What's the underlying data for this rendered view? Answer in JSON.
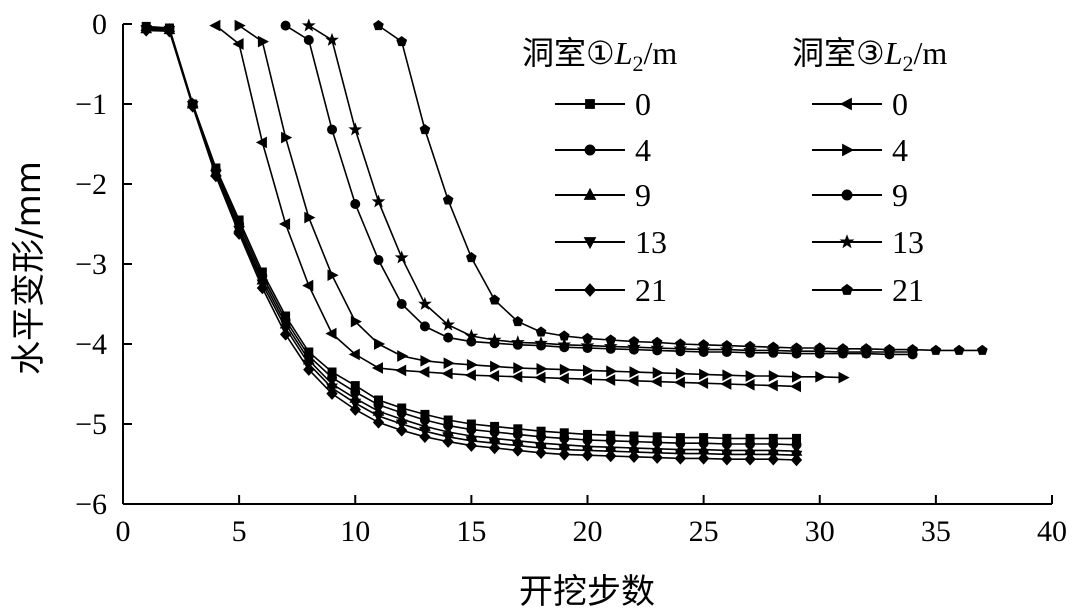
{
  "chart_data": {
    "type": "line",
    "title": "",
    "xlabel": "开挖步数",
    "ylabel": "水平变形/mm",
    "xlim": [
      0,
      40
    ],
    "ylim": [
      -6,
      0
    ],
    "xticks": [
      0,
      5,
      10,
      15,
      20,
      25,
      30,
      35,
      40
    ],
    "yticks": [
      0,
      -1,
      -2,
      -3,
      -4,
      -5,
      -6
    ],
    "xtick_labels": [
      "0",
      "5",
      "10",
      "15",
      "20",
      "25",
      "30",
      "35",
      "40"
    ],
    "ytick_labels": [
      "0",
      "−1",
      "−2",
      "−3",
      "−4",
      "−5",
      "−6"
    ],
    "legend": {
      "position": "top-right",
      "group1": {
        "title_prefix": "洞室①",
        "title_var": "L",
        "title_sub": "2",
        "title_suffix": "/m"
      },
      "group2": {
        "title_prefix": "洞室③",
        "title_var": "L",
        "title_sub": "2",
        "title_suffix": "/m"
      }
    },
    "series": [
      {
        "name": "0",
        "group": 1,
        "marker": "square",
        "x": [
          1,
          2,
          3,
          4,
          5,
          6,
          7,
          8,
          9,
          10,
          11,
          12,
          13,
          14,
          15,
          16,
          17,
          18,
          19,
          20,
          21,
          22,
          23,
          24,
          25,
          26,
          27,
          28,
          29
        ],
        "y": [
          -0.03,
          -0.05,
          -1.0,
          -1.8,
          -2.45,
          -3.1,
          -3.65,
          -4.1,
          -4.35,
          -4.52,
          -4.7,
          -4.8,
          -4.88,
          -4.95,
          -5.0,
          -5.03,
          -5.06,
          -5.09,
          -5.11,
          -5.13,
          -5.14,
          -5.15,
          -5.16,
          -5.17,
          -5.17,
          -5.18,
          -5.18,
          -5.18,
          -5.18
        ]
      },
      {
        "name": "4",
        "group": 1,
        "marker": "circle",
        "x": [
          1,
          2,
          3,
          4,
          5,
          6,
          7,
          8,
          9,
          10,
          11,
          12,
          13,
          14,
          15,
          16,
          17,
          18,
          19,
          20,
          21,
          22,
          23,
          24,
          25,
          26,
          27,
          28,
          29
        ],
        "y": [
          -0.05,
          -0.06,
          -1.0,
          -1.82,
          -2.5,
          -3.15,
          -3.7,
          -4.15,
          -4.42,
          -4.6,
          -4.76,
          -4.86,
          -4.95,
          -5.02,
          -5.07,
          -5.1,
          -5.13,
          -5.16,
          -5.18,
          -5.2,
          -5.21,
          -5.22,
          -5.23,
          -5.24,
          -5.24,
          -5.25,
          -5.25,
          -5.25,
          -5.26
        ]
      },
      {
        "name": "9",
        "group": 1,
        "marker": "triangle-up",
        "x": [
          1,
          2,
          3,
          4,
          5,
          6,
          7,
          8,
          9,
          10,
          11,
          12,
          13,
          14,
          15,
          16,
          17,
          18,
          19,
          20,
          21,
          22,
          23,
          24,
          25,
          26,
          27,
          28,
          29
        ],
        "y": [
          -0.06,
          -0.07,
          -1.0,
          -1.85,
          -2.55,
          -3.2,
          -3.75,
          -4.2,
          -4.5,
          -4.68,
          -4.84,
          -4.94,
          -5.03,
          -5.1,
          -5.15,
          -5.18,
          -5.21,
          -5.24,
          -5.26,
          -5.28,
          -5.29,
          -5.3,
          -5.31,
          -5.32,
          -5.32,
          -5.33,
          -5.33,
          -5.33,
          -5.34
        ]
      },
      {
        "name": "13",
        "group": 1,
        "marker": "triangle-down",
        "x": [
          1,
          2,
          3,
          4,
          5,
          6,
          7,
          8,
          9,
          10,
          11,
          12,
          13,
          14,
          15,
          16,
          17,
          18,
          19,
          20,
          21,
          22,
          23,
          24,
          25,
          26,
          27,
          28,
          29
        ],
        "y": [
          -0.07,
          -0.08,
          -1.02,
          -1.88,
          -2.58,
          -3.25,
          -3.8,
          -4.25,
          -4.55,
          -4.74,
          -4.9,
          -5.0,
          -5.09,
          -5.16,
          -5.21,
          -5.24,
          -5.27,
          -5.3,
          -5.32,
          -5.33,
          -5.34,
          -5.35,
          -5.36,
          -5.37,
          -5.37,
          -5.38,
          -5.38,
          -5.38,
          -5.39
        ]
      },
      {
        "name": "21",
        "group": 1,
        "marker": "diamond",
        "x": [
          1,
          2,
          3,
          4,
          5,
          6,
          7,
          8,
          9,
          10,
          11,
          12,
          13,
          14,
          15,
          16,
          17,
          18,
          19,
          20,
          21,
          22,
          23,
          24,
          25,
          26,
          27,
          28,
          29
        ],
        "y": [
          -0.08,
          -0.09,
          -1.03,
          -1.9,
          -2.62,
          -3.3,
          -3.88,
          -4.32,
          -4.62,
          -4.82,
          -4.98,
          -5.08,
          -5.16,
          -5.22,
          -5.27,
          -5.3,
          -5.33,
          -5.36,
          -5.38,
          -5.39,
          -5.4,
          -5.41,
          -5.42,
          -5.43,
          -5.43,
          -5.44,
          -5.44,
          -5.44,
          -5.45
        ]
      },
      {
        "name": "0",
        "group": 2,
        "marker": "triangle-left",
        "x": [
          4,
          5,
          6,
          7,
          8,
          9,
          10,
          11,
          12,
          13,
          14,
          15,
          16,
          17,
          18,
          19,
          20,
          21,
          22,
          23,
          24,
          25,
          26,
          27,
          28,
          29
        ],
        "y": [
          -0.02,
          -0.25,
          -1.48,
          -2.5,
          -3.27,
          -3.87,
          -4.13,
          -4.3,
          -4.33,
          -4.35,
          -4.37,
          -4.39,
          -4.4,
          -4.41,
          -4.42,
          -4.43,
          -4.44,
          -4.45,
          -4.46,
          -4.47,
          -4.48,
          -4.49,
          -4.5,
          -4.51,
          -4.52,
          -4.53
        ]
      },
      {
        "name": "4",
        "group": 2,
        "marker": "triangle-right",
        "x": [
          5,
          6,
          7,
          8,
          9,
          10,
          11,
          12,
          13,
          14,
          15,
          16,
          17,
          18,
          19,
          20,
          21,
          22,
          23,
          24,
          25,
          26,
          27,
          28,
          29,
          30,
          31
        ],
        "y": [
          -0.02,
          -0.22,
          -1.42,
          -2.42,
          -3.14,
          -3.72,
          -4.0,
          -4.15,
          -4.21,
          -4.24,
          -4.26,
          -4.28,
          -4.3,
          -4.31,
          -4.32,
          -4.33,
          -4.34,
          -4.35,
          -4.36,
          -4.37,
          -4.38,
          -4.39,
          -4.4,
          -4.4,
          -4.41,
          -4.41,
          -4.42
        ]
      },
      {
        "name": "9",
        "group": 2,
        "marker": "circle",
        "x": [
          7,
          8,
          9,
          10,
          11,
          12,
          13,
          14,
          15,
          16,
          17,
          18,
          19,
          20,
          21,
          22,
          23,
          24,
          25,
          26,
          27,
          28,
          29,
          30,
          31,
          32,
          33,
          34
        ],
        "y": [
          -0.02,
          -0.2,
          -1.32,
          -2.25,
          -2.95,
          -3.5,
          -3.78,
          -3.92,
          -3.97,
          -3.99,
          -4.01,
          -4.02,
          -4.04,
          -4.05,
          -4.06,
          -4.07,
          -4.08,
          -4.09,
          -4.1,
          -4.1,
          -4.11,
          -4.11,
          -4.12,
          -4.12,
          -4.12,
          -4.12,
          -4.13,
          -4.13
        ]
      },
      {
        "name": "13",
        "group": 2,
        "marker": "star",
        "x": [
          8,
          9,
          10,
          11,
          12,
          13,
          14,
          15,
          16,
          17,
          18,
          19,
          20,
          21,
          22,
          23,
          24,
          25,
          26,
          27,
          28,
          29,
          30,
          31,
          32,
          33,
          34
        ],
        "y": [
          -0.02,
          -0.2,
          -1.32,
          -2.22,
          -2.92,
          -3.5,
          -3.76,
          -3.9,
          -3.95,
          -3.98,
          -3.99,
          -4.01,
          -4.02,
          -4.03,
          -4.04,
          -4.05,
          -4.06,
          -4.07,
          -4.07,
          -4.08,
          -4.08,
          -4.09,
          -4.09,
          -4.1,
          -4.1,
          -4.1,
          -4.1
        ]
      },
      {
        "name": "21",
        "group": 2,
        "marker": "pentagon",
        "x": [
          11,
          12,
          13,
          14,
          15,
          16,
          17,
          18,
          19,
          20,
          21,
          22,
          23,
          24,
          25,
          26,
          27,
          28,
          29,
          30,
          31,
          32,
          33,
          34,
          35,
          36,
          37
        ],
        "y": [
          -0.02,
          -0.22,
          -1.32,
          -2.2,
          -2.92,
          -3.45,
          -3.72,
          -3.85,
          -3.9,
          -3.93,
          -3.95,
          -3.97,
          -3.98,
          -4.0,
          -4.01,
          -4.02,
          -4.03,
          -4.04,
          -4.05,
          -4.05,
          -4.06,
          -4.06,
          -4.07,
          -4.07,
          -4.08,
          -4.08,
          -4.08
        ]
      }
    ]
  }
}
